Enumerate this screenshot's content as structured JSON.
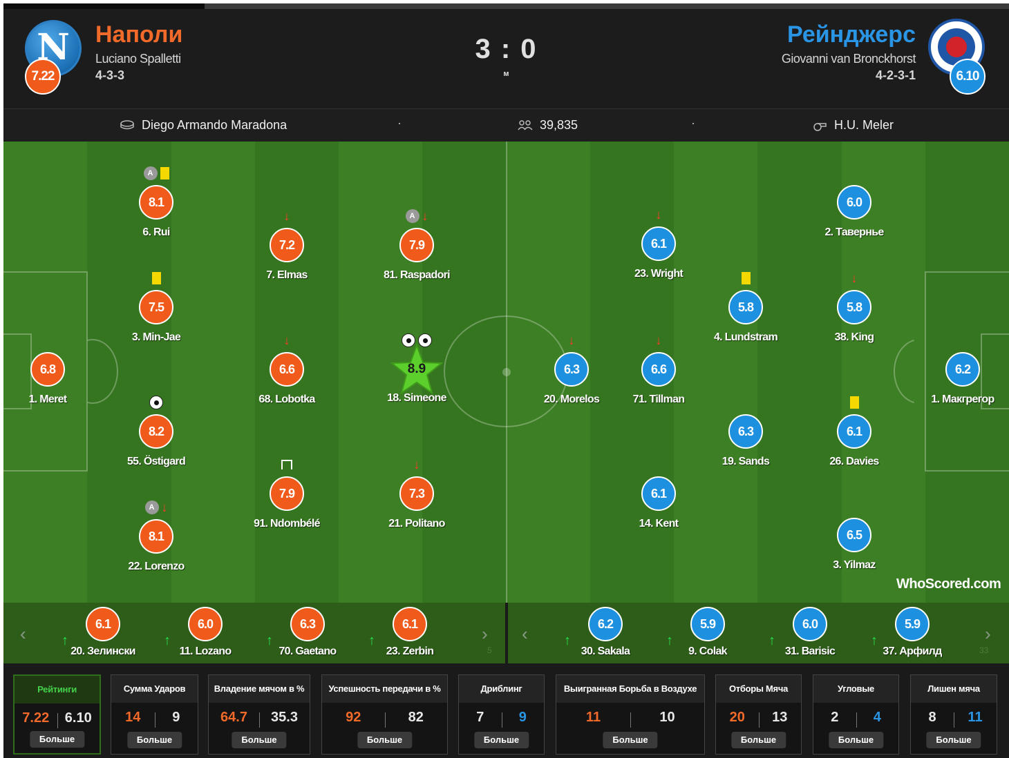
{
  "match": {
    "score": "3 : 0",
    "status": "м",
    "home": {
      "name": "Наполи",
      "manager": "Luciano Spalletti",
      "formation": "4-3-3",
      "rating": "7.22",
      "color": "#f05a1a"
    },
    "away": {
      "name": "Рейнджерс",
      "manager": "Giovanni van Bronckhorst",
      "formation": "4-2-3-1",
      "rating": "6.10",
      "color": "#1e90e0"
    },
    "progress": 0.2
  },
  "info": {
    "stadium": "Diego Armando Maradona",
    "attendance": "39,835",
    "referee": "H.U. Meler",
    "separator": "·",
    "icons": [
      "stadium-icon",
      "crowd-icon",
      "whistle-icon"
    ]
  },
  "home_players": [
    {
      "name": "1. Meret",
      "rating": "6.8",
      "events": []
    },
    {
      "name": "6. Rui",
      "rating": "8.1",
      "events": [
        "captain",
        "yellow"
      ]
    },
    {
      "name": "3. Min-Jae",
      "rating": "7.5",
      "events": [
        "yellow"
      ]
    },
    {
      "name": "55. Östigard",
      "rating": "8.2",
      "events": [
        "goal"
      ]
    },
    {
      "name": "22. Lorenzo",
      "rating": "8.1",
      "events": [
        "captain",
        "sub-off"
      ]
    },
    {
      "name": "7. Elmas",
      "rating": "7.2",
      "events": [
        "sub-off"
      ]
    },
    {
      "name": "68. Lobotka",
      "rating": "6.6",
      "events": [
        "sub-off"
      ]
    },
    {
      "name": "91. Ndombélé",
      "rating": "7.9",
      "events": [
        "assist"
      ]
    },
    {
      "name": "81. Raspadori",
      "rating": "7.9",
      "events": [
        "captain",
        "sub-off"
      ]
    },
    {
      "name": "18. Simeone",
      "rating": "8.9",
      "events": [
        "goal",
        "goal"
      ],
      "man_of_match": true
    },
    {
      "name": "21. Politano",
      "rating": "7.3",
      "events": [
        "sub-off"
      ]
    }
  ],
  "away_players": [
    {
      "name": "1. Макгрегор",
      "rating": "6.2",
      "events": []
    },
    {
      "name": "2. Тавернье",
      "rating": "6.0",
      "events": []
    },
    {
      "name": "38. King",
      "rating": "5.8",
      "events": [
        "sub-off"
      ]
    },
    {
      "name": "26. Davies",
      "rating": "6.1",
      "events": [
        "yellow"
      ]
    },
    {
      "name": "3. Yilmaz",
      "rating": "6.5",
      "events": []
    },
    {
      "name": "4. Lundstram",
      "rating": "5.8",
      "events": [
        "yellow"
      ]
    },
    {
      "name": "19. Sands",
      "rating": "6.3",
      "events": []
    },
    {
      "name": "23. Wright",
      "rating": "6.1",
      "events": [
        "sub-off"
      ]
    },
    {
      "name": "71. Tillman",
      "rating": "6.6",
      "events": [
        "sub-off"
      ]
    },
    {
      "name": "14. Kent",
      "rating": "6.1",
      "events": []
    },
    {
      "name": "20. Morelos",
      "rating": "6.3",
      "events": [
        "sub-off"
      ]
    }
  ],
  "home_bench": [
    {
      "name": "20. Зелински",
      "rating": "6.1"
    },
    {
      "name": "11. Lozano",
      "rating": "6.0"
    },
    {
      "name": "70. Gaetano",
      "rating": "6.3"
    },
    {
      "name": "23. Zerbin",
      "rating": "6.1"
    }
  ],
  "away_bench": [
    {
      "name": "30. Sakala",
      "rating": "6.2"
    },
    {
      "name": "9. Colak",
      "rating": "5.9"
    },
    {
      "name": "31. Barisic",
      "rating": "6.0"
    },
    {
      "name": "37. Арфилд",
      "rating": "5.9"
    }
  ],
  "bench_nav": {
    "prev": "‹",
    "next": "›",
    "partial_home": "5",
    "partial_away": "33"
  },
  "watermark": {
    "brand": "WhoScored",
    "suffix": ".com"
  },
  "stats": [
    {
      "title": "Рейтинги",
      "home": "7.22",
      "away": "6.10",
      "home_color": "orange",
      "away_color": "white",
      "active": true
    },
    {
      "title": "Сумма Ударов",
      "home": "14",
      "away": "9",
      "home_color": "orange",
      "away_color": "white"
    },
    {
      "title": "Владение мячом в %",
      "home": "64.7",
      "away": "35.3",
      "home_color": "orange",
      "away_color": "white"
    },
    {
      "title": "Успешность передачи в %",
      "home": "92",
      "away": "82",
      "home_color": "orange",
      "away_color": "white"
    },
    {
      "title": "Дриблинг",
      "home": "7",
      "away": "9",
      "home_color": "white",
      "away_color": "blue"
    },
    {
      "title": "Выигранная Борьба в Воздухе",
      "home": "11",
      "away": "10",
      "home_color": "orange",
      "away_color": "white"
    },
    {
      "title": "Отборы Мяча",
      "home": "20",
      "away": "13",
      "home_color": "orange",
      "away_color": "white"
    },
    {
      "title": "Угловые",
      "home": "2",
      "away": "4",
      "home_color": "white",
      "away_color": "blue"
    },
    {
      "title": "Лишен мяча",
      "home": "8",
      "away": "11",
      "home_color": "white",
      "away_color": "blue"
    }
  ],
  "more_label": "Больше"
}
